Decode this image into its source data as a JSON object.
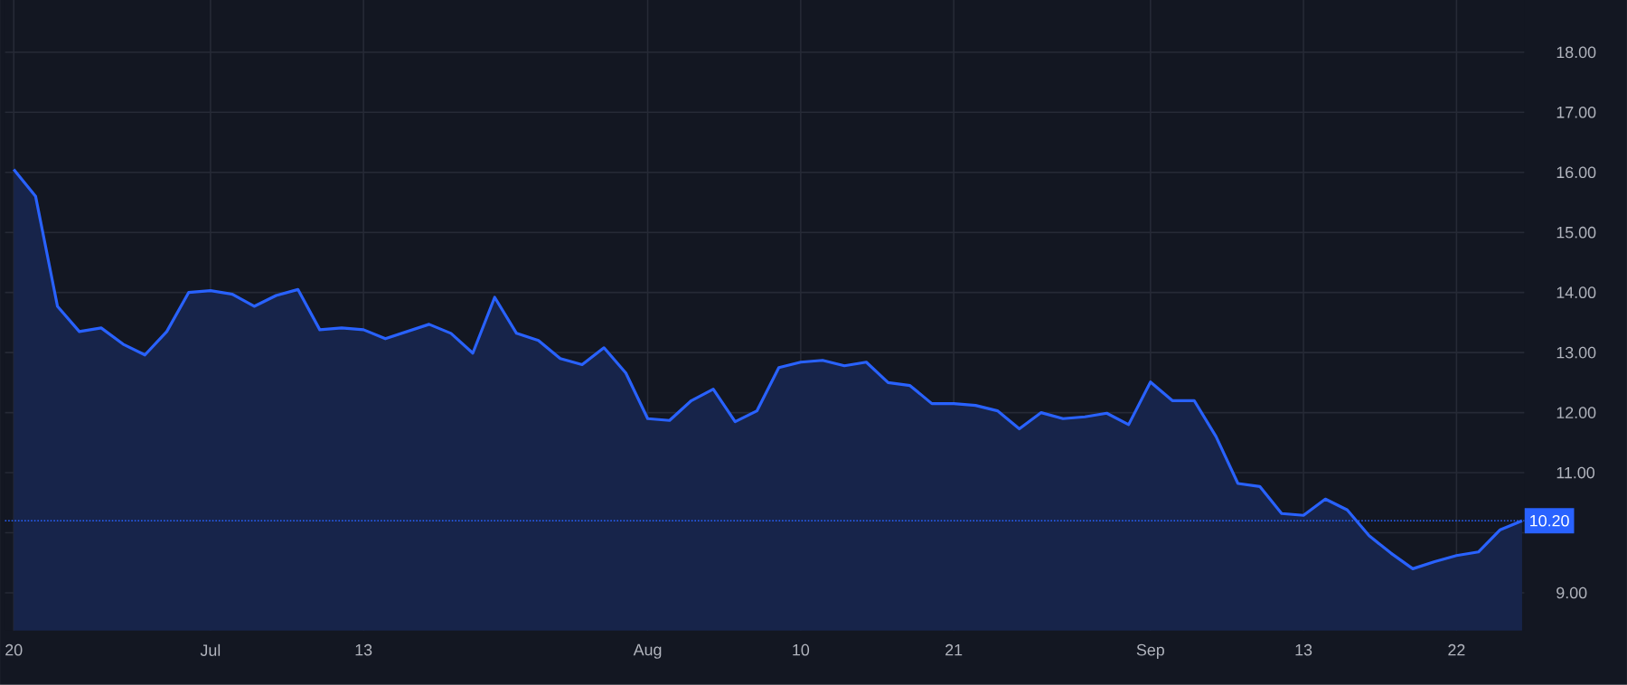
{
  "chart_data": {
    "type": "area",
    "color": "#2962ff",
    "grid": true,
    "line_style": "solid",
    "categories": [
      "20",
      null,
      null,
      null,
      null,
      null,
      null,
      null,
      null,
      "Jul",
      null,
      null,
      null,
      null,
      null,
      null,
      "13",
      null,
      null,
      null,
      null,
      null,
      null,
      null,
      null,
      null,
      null,
      null,
      null,
      "Aug",
      null,
      null,
      null,
      null,
      null,
      null,
      "10",
      null,
      null,
      null,
      null,
      null,
      null,
      "21",
      null,
      null,
      null,
      null,
      null,
      null,
      null,
      null,
      "Sep",
      null,
      null,
      null,
      null,
      null,
      null,
      "13",
      null,
      null,
      null,
      null,
      null,
      null,
      "22",
      null,
      null,
      null
    ],
    "values": [
      16.05,
      15.6,
      13.77,
      13.35,
      13.41,
      13.14,
      12.96,
      13.35,
      14.0,
      14.03,
      13.97,
      13.77,
      13.95,
      14.05,
      13.38,
      13.41,
      13.38,
      13.23,
      13.35,
      13.47,
      13.32,
      12.99,
      13.92,
      13.32,
      13.2,
      12.9,
      12.8,
      13.08,
      12.66,
      11.9,
      11.87,
      12.2,
      12.39,
      11.85,
      12.03,
      12.75,
      12.84,
      12.87,
      12.78,
      12.84,
      12.5,
      12.45,
      12.15,
      12.15,
      12.12,
      12.03,
      11.73,
      12.0,
      11.9,
      11.93,
      11.99,
      11.8,
      12.51,
      12.2,
      12.2,
      11.6,
      10.82,
      10.77,
      10.32,
      10.29,
      10.56,
      10.38,
      9.95,
      9.66,
      9.4,
      9.52,
      9.62,
      9.68,
      10.05,
      10.2
    ],
    "ylim": [
      8.37,
      18.87
    ],
    "yticks": [
      {
        "value": 9,
        "label": "9.00"
      },
      {
        "value": 10,
        "label": null
      },
      {
        "value": 11,
        "label": "11.00"
      },
      {
        "value": 12,
        "label": "12.00"
      },
      {
        "value": 13,
        "label": "13.00"
      },
      {
        "value": 14,
        "label": "14.00"
      },
      {
        "value": 15,
        "label": "15.00"
      },
      {
        "value": 16,
        "label": "16.00"
      },
      {
        "value": 17,
        "label": "17.00"
      },
      {
        "value": 18,
        "label": "18.00"
      }
    ],
    "ref_lines": [
      {
        "axis": "y",
        "value": 10.2,
        "label": "10.20",
        "color": "#2962ff",
        "line_style": "dotted"
      }
    ]
  }
}
